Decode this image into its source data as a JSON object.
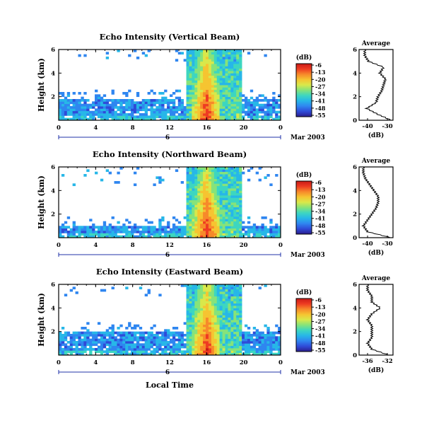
{
  "colors": {
    "colorbar": [
      "#2b1d8c",
      "#2f4bd8",
      "#2f86f0",
      "#27b7e8",
      "#3dd6c0",
      "#86e37a",
      "#d9e84a",
      "#f6c431",
      "#f7892a",
      "#ee3b22",
      "#c81a16"
    ]
  },
  "panels": [
    {
      "title": "Echo Intensity (Vertical Beam)",
      "ylabel": "Height (km)",
      "date_label": "Mar 2003",
      "day_label": "6",
      "colorbar_unit": "(dB)",
      "avg_title": "Average",
      "avg_xlabel": "(dB)",
      "avg_xticks": [
        "-40",
        "-30"
      ]
    },
    {
      "title": "Echo Intensity (Northward Beam)",
      "ylabel": "Height (km)",
      "date_label": "Mar 2003",
      "day_label": "6",
      "colorbar_unit": "(dB)",
      "avg_title": "Average",
      "avg_xlabel": "(dB)",
      "avg_xticks": [
        "-40",
        "-30"
      ]
    },
    {
      "title": "Echo Intensity (Eastward Beam)",
      "ylabel": "Height (km)",
      "date_label": "Mar 2003",
      "day_label": "6",
      "colorbar_unit": "(dB)",
      "avg_title": "Average",
      "avg_xlabel": "(dB)",
      "avg_xticks": [
        "-36",
        "-32"
      ]
    }
  ],
  "xlabel": "Local Time",
  "x_ticks": [
    "0",
    "4",
    "8",
    "12",
    "16",
    "20",
    "0"
  ],
  "y_ticks": [
    "2",
    "4",
    "6"
  ],
  "avg_y_ticks": [
    "0",
    "2",
    "4",
    "6"
  ],
  "colorbar_ticks": [
    "-6",
    "-13",
    "-20",
    "-27",
    "-34",
    "-41",
    "-48",
    "-55"
  ],
  "chart_data": [
    {
      "type": "heatmap",
      "title": "Echo Intensity (Vertical Beam)",
      "xlabel": "Local Time",
      "ylabel": "Height (km)",
      "x_range_hours": [
        0,
        24
      ],
      "y_range_km": [
        0,
        6
      ],
      "color_scale_db": [
        -55,
        -6
      ],
      "features": {
        "strong_echo_hours": [
          14.5,
          17.5
        ],
        "strong_echo_peak_db": -6,
        "low_layer_top_km": 1.8,
        "upper_echoes_km": [
          5,
          6
        ]
      },
      "average_profile": {
        "xlabel": "(dB)",
        "xlim": [
          -44,
          -26
        ],
        "heights_km": [
          0,
          0.5,
          1.0,
          1.5,
          2.0,
          2.5,
          3.0,
          3.5,
          4.0,
          4.5,
          5.0,
          5.5,
          6.0
        ],
        "values_db": [
          -27,
          -34,
          -40,
          -35,
          -34,
          -32,
          -31,
          -30,
          -33,
          -31,
          -39,
          -41,
          -41
        ]
      }
    },
    {
      "type": "heatmap",
      "title": "Echo Intensity (Northward Beam)",
      "xlabel": "Local Time",
      "ylabel": "Height (km)",
      "x_range_hours": [
        0,
        24
      ],
      "y_range_km": [
        0,
        6
      ],
      "color_scale_db": [
        -55,
        -6
      ],
      "features": {
        "strong_echo_hours": [
          14.5,
          17.5
        ],
        "strong_echo_peak_db": -6,
        "low_layer_top_km": 1.0,
        "upper_echoes_km": [
          4.5,
          6
        ]
      },
      "average_profile": {
        "xlabel": "(dB)",
        "xlim": [
          -40,
          -24
        ],
        "heights_km": [
          0,
          0.5,
          1.0,
          1.5,
          2.0,
          2.5,
          3.0,
          3.5,
          4.0,
          4.5,
          5.0,
          5.5,
          6.0
        ],
        "values_db": [
          -25,
          -36,
          -38,
          -36,
          -34,
          -32,
          -31,
          -31,
          -33,
          -35,
          -37,
          -38,
          -38
        ]
      }
    },
    {
      "type": "heatmap",
      "title": "Echo Intensity (Eastward Beam)",
      "xlabel": "Local Time",
      "ylabel": "Height (km)",
      "x_range_hours": [
        0,
        24
      ],
      "y_range_km": [
        0,
        6
      ],
      "color_scale_db": [
        -55,
        -6
      ],
      "features": {
        "strong_echo_hours": [
          14.5,
          17.5
        ],
        "strong_echo_peak_db": -6,
        "low_layer_top_km": 2.0,
        "upper_echoes_km": [
          5,
          6
        ]
      },
      "average_profile": {
        "xlabel": "(dB)",
        "xlim": [
          -38,
          -30
        ],
        "heights_km": [
          0,
          0.5,
          1.0,
          1.5,
          2.0,
          2.5,
          3.0,
          3.5,
          4.0,
          4.5,
          5.0,
          5.5,
          6.0
        ],
        "values_db": [
          -31,
          -35,
          -36,
          -35,
          -35,
          -35,
          -36,
          -35,
          -33,
          -35,
          -35,
          -36,
          -36
        ]
      }
    }
  ]
}
